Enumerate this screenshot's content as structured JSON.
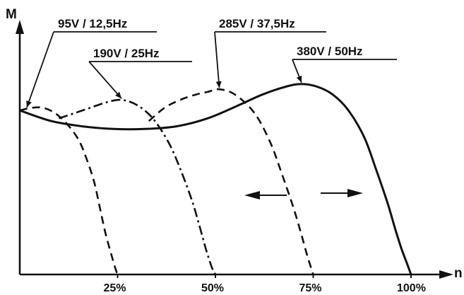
{
  "chart_data": {
    "type": "line",
    "ylabel": "M",
    "xlabel": "n",
    "x_ticks": [
      "25%",
      "50%",
      "75%",
      "100%"
    ],
    "xlim": [
      0,
      105
    ],
    "ylim": [
      0,
      100
    ],
    "grid": false,
    "legend": "none",
    "series": [
      {
        "name": "95V / 12,5Hz",
        "style": "dashed",
        "x": [
          0,
          3,
          6,
          9,
          12,
          15,
          17,
          19,
          20.5,
          22,
          23.5,
          24.5,
          25
        ],
        "y": [
          62,
          63,
          63,
          61,
          57,
          51,
          44,
          35,
          25,
          15,
          7,
          2,
          0
        ]
      },
      {
        "name": "190V / 25Hz",
        "style": "dashdot",
        "x": [
          10,
          14,
          18,
          22,
          26,
          30,
          34,
          38,
          41,
          44,
          46,
          47.5,
          49,
          50
        ],
        "y": [
          59,
          61,
          63,
          65,
          66,
          64,
          59,
          50,
          40,
          28,
          18,
          10,
          3,
          0
        ]
      },
      {
        "name": "285V / 37,5Hz",
        "style": "dashed",
        "x": [
          33,
          37,
          41,
          45,
          48,
          51,
          55,
          60,
          64,
          67,
          70,
          72,
          73.5,
          75
        ],
        "y": [
          58,
          63,
          66,
          68,
          69,
          70,
          68,
          61,
          50,
          38,
          25,
          15,
          7,
          0
        ]
      },
      {
        "name": "380V / 50Hz",
        "style": "solid",
        "x": [
          0,
          8,
          16,
          24,
          32,
          40,
          48,
          56,
          62,
          68,
          72,
          76,
          80,
          84,
          88,
          91,
          94,
          96,
          97.5,
          99,
          100
        ],
        "y": [
          62,
          58,
          56,
          55,
          55,
          56,
          59,
          64,
          68,
          71,
          72,
          71,
          68,
          62,
          52,
          40,
          27,
          17,
          10,
          4,
          0
        ]
      }
    ],
    "annotations": [
      "←",
      "→"
    ],
    "colors": {
      "ink": "#111111",
      "background": "#ffffff"
    }
  }
}
